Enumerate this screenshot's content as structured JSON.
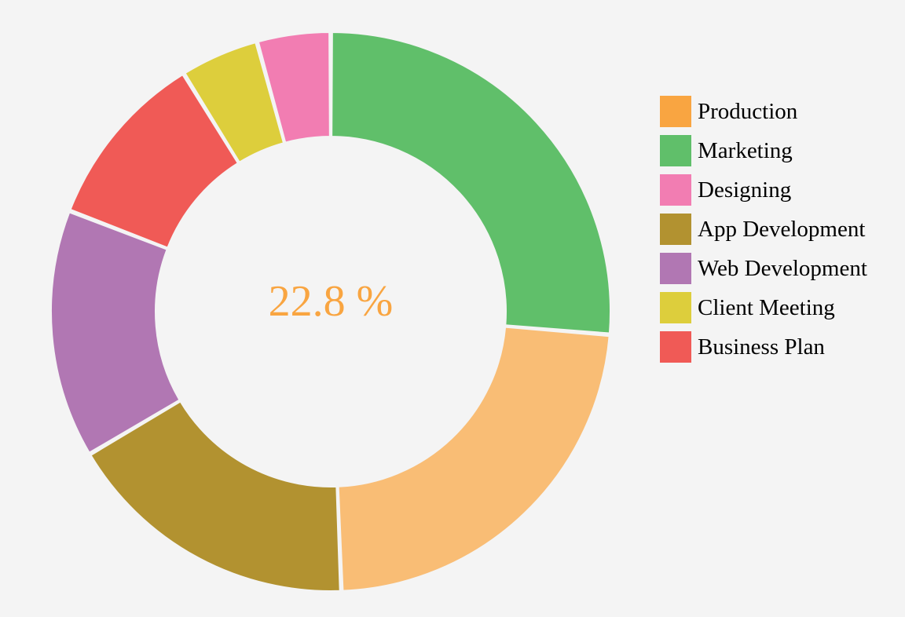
{
  "chart_data": {
    "type": "pie",
    "variant": "donut",
    "center_label": "22.8 %",
    "center_label_color": "#f9a541",
    "slices": [
      {
        "name": "Marketing",
        "value": 26.0,
        "color": "#60bf6a"
      },
      {
        "name": "Production",
        "value": 22.8,
        "color": "#f9bd75",
        "highlighted": true
      },
      {
        "name": "App Development",
        "value": 16.9,
        "color": "#b29230"
      },
      {
        "name": "Web Development",
        "value": 14.2,
        "color": "#b177b3"
      },
      {
        "name": "Business Plan",
        "value": 10.2,
        "color": "#f05a56"
      },
      {
        "name": "Client Meeting",
        "value": 4.5,
        "color": "#ddce3c"
      },
      {
        "name": "Designing",
        "value": 4.2,
        "color": "#f27db2"
      }
    ],
    "legend": {
      "placement": "right",
      "items": [
        {
          "label": "Production",
          "color": "#f9a541"
        },
        {
          "label": "Marketing",
          "color": "#60bf6a"
        },
        {
          "label": "Designing",
          "color": "#f27db2"
        },
        {
          "label": "App Development",
          "color": "#b29230"
        },
        {
          "label": "Web Development",
          "color": "#b177b3"
        },
        {
          "label": "Client Meeting",
          "color": "#ddce3c"
        },
        {
          "label": "Business Plan",
          "color": "#f05a56"
        }
      ]
    }
  }
}
